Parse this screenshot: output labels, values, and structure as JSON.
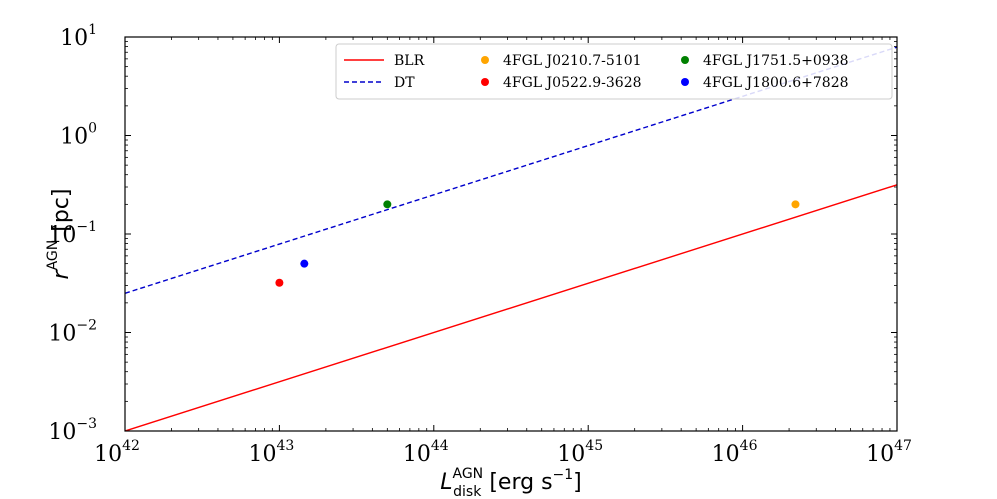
{
  "chart_data": {
    "type": "scatter",
    "xscale": "log",
    "yscale": "log",
    "xlim": [
      1e+42,
      1e+47
    ],
    "ylim": [
      0.001,
      10
    ],
    "xlabel": {
      "main": "L",
      "sup": "AGN",
      "sub": "disk",
      "unit": "[erg s",
      "unit_exp": "−1",
      "unit_close": "]"
    },
    "ylabel": {
      "main": "r",
      "sup": "AGN",
      "unit": "[pc]"
    },
    "x_ticks": [
      {
        "value": 1e+42,
        "base": "10",
        "exp": "42"
      },
      {
        "value": 1e+43,
        "base": "10",
        "exp": "43"
      },
      {
        "value": 1e+44,
        "base": "10",
        "exp": "44"
      },
      {
        "value": 1e+45,
        "base": "10",
        "exp": "45"
      },
      {
        "value": 1e+46,
        "base": "10",
        "exp": "46"
      },
      {
        "value": 1e+47,
        "base": "10",
        "exp": "47"
      }
    ],
    "y_ticks": [
      {
        "value": 0.001,
        "base": "10",
        "exp": "−3"
      },
      {
        "value": 0.01,
        "base": "10",
        "exp": "−2"
      },
      {
        "value": 0.1,
        "base": "10",
        "exp": "−1"
      },
      {
        "value": 1,
        "base": "10",
        "exp": "0"
      },
      {
        "value": 10,
        "base": "10",
        "exp": "1"
      }
    ],
    "lines": [
      {
        "name": "BLR",
        "color": "#ff0000",
        "style": "solid",
        "points": [
          [
            1e+42,
            0.001
          ],
          [
            1e+47,
            0.316
          ]
        ]
      },
      {
        "name": "DT",
        "color": "#0000cc",
        "style": "dashed",
        "points": [
          [
            1e+42,
            0.025
          ],
          [
            1e+47,
            7.9
          ]
        ]
      }
    ],
    "points": [
      {
        "name": "4FGL J0210.7-5101",
        "color": "#ffa500",
        "x": 2.2e+46,
        "y": 0.2
      },
      {
        "name": "4FGL J0522.9-3628",
        "color": "#ff0000",
        "x": 1e+43,
        "y": 0.032
      },
      {
        "name": "4FGL J1751.5+0938",
        "color": "#008000",
        "x": 5e+43,
        "y": 0.2
      },
      {
        "name": "4FGL J1800.6+7828",
        "color": "#0000ff",
        "x": 1.45e+43,
        "y": 0.05
      }
    ],
    "legend_position": "top-right"
  }
}
